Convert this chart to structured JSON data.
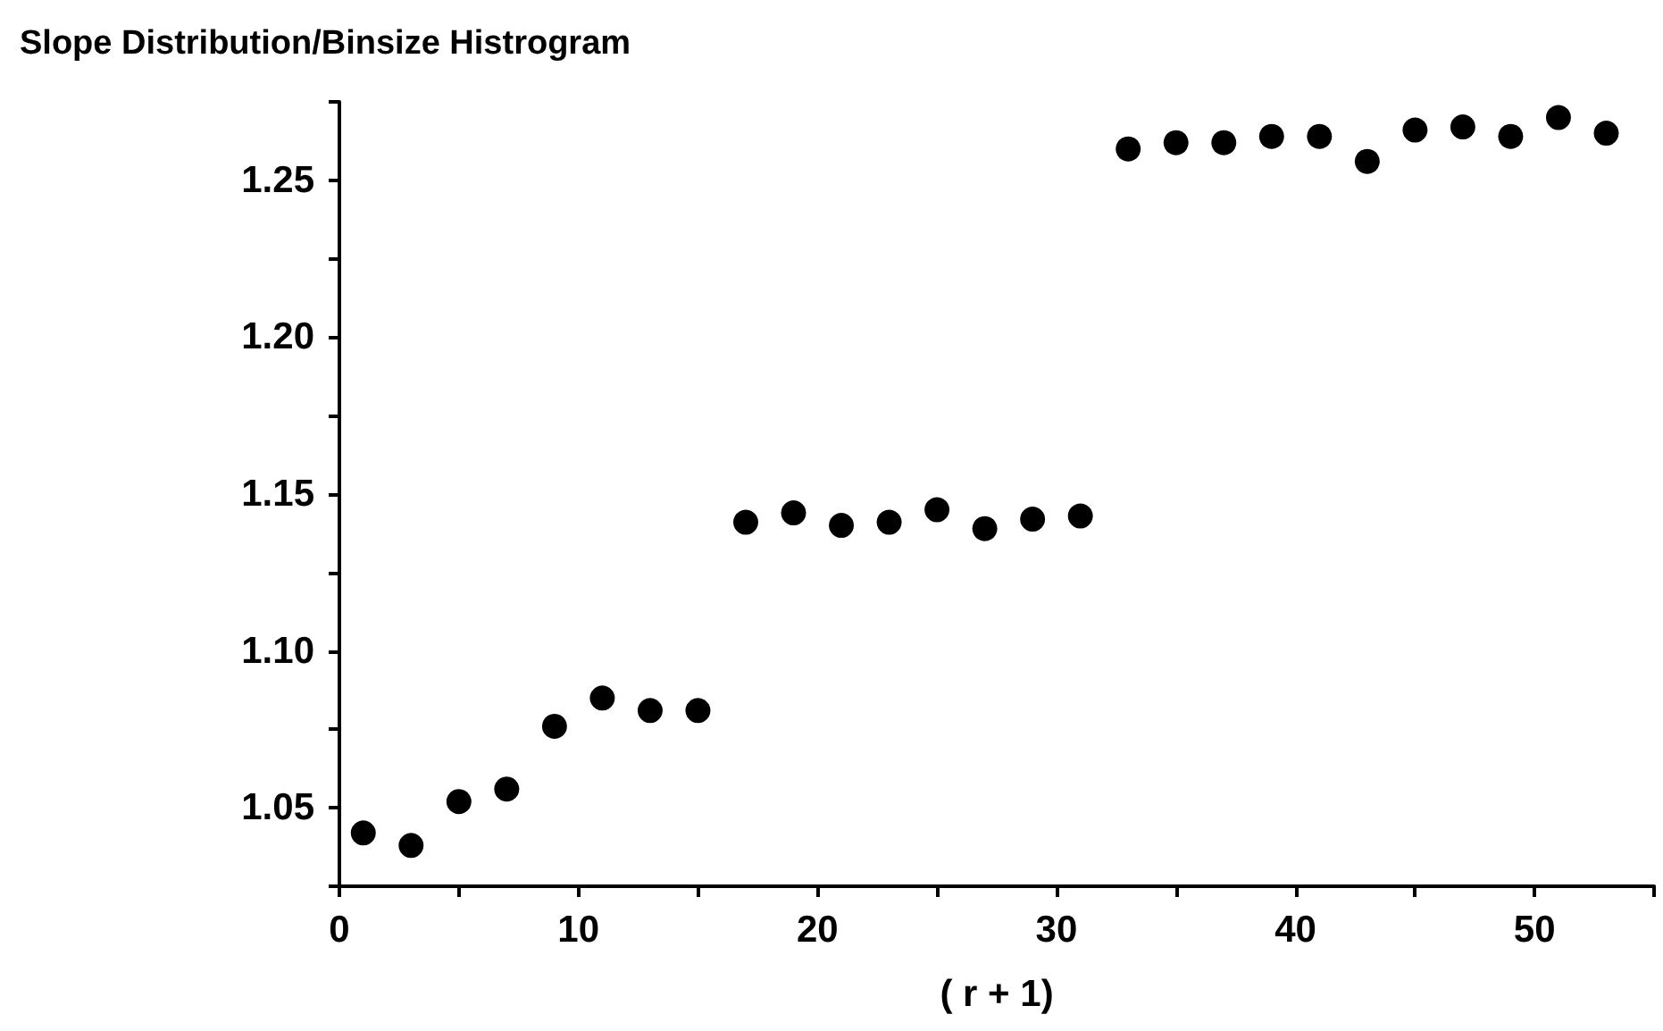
{
  "chart_data": {
    "type": "scatter",
    "title": "Slope Distribution/Binsize Histrogram",
    "xlabel": "( r + 1)",
    "x": [
      1,
      3,
      5,
      7,
      9,
      11,
      13,
      15,
      17,
      19,
      21,
      23,
      25,
      27,
      29,
      31,
      33,
      35,
      37,
      39,
      41,
      43,
      45,
      47,
      49,
      51,
      53
    ],
    "series": [
      {
        "color": "#000000",
        "values": [
          1.042,
          1.038,
          1.052,
          1.056,
          1.076,
          1.085,
          1.081,
          1.081,
          1.141,
          1.144,
          1.14,
          1.141,
          1.145,
          1.139,
          1.142,
          1.143,
          1.26,
          1.262,
          1.262,
          1.264,
          1.264,
          1.256,
          1.266,
          1.267,
          1.264,
          1.27,
          1.265
        ]
      }
    ],
    "xlim": [
      0,
      55
    ],
    "xticks": [
      0,
      {
        "value": 5,
        "label": null
      },
      10,
      {
        "value": 15,
        "label": null
      },
      20,
      {
        "value": 25,
        "label": null
      },
      30,
      {
        "value": 35,
        "label": null
      },
      40,
      {
        "value": 45,
        "label": null
      },
      50,
      {
        "value": 55,
        "label": null
      }
    ],
    "ylim": [
      1.025,
      1.275
    ],
    "yticks": [
      {
        "value": 1.025,
        "label": null
      },
      {
        "value": 1.05,
        "label": "1.05"
      },
      {
        "value": 1.075,
        "label": null
      },
      {
        "value": 1.1,
        "label": "1.10"
      },
      {
        "value": 1.125,
        "label": null
      },
      {
        "value": 1.15,
        "label": "1.15"
      },
      {
        "value": 1.175,
        "label": null
      },
      {
        "value": 1.2,
        "label": "1.20"
      },
      {
        "value": 1.225,
        "label": null
      },
      {
        "value": 1.25,
        "label": "1.25"
      },
      {
        "value": 1.275,
        "label": null
      }
    ],
    "grid": false,
    "marker": "circle"
  }
}
